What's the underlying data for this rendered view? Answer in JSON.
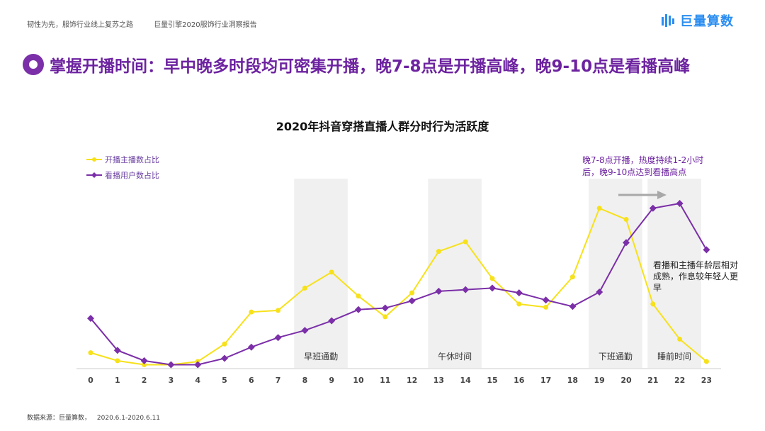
{
  "header": {
    "left_1": "韧性为先，服饰行业线上复苏之路",
    "left_2": "巨量引擎2020服饰行业洞察报告",
    "brand": "巨量算数"
  },
  "title": "掌握开播时间：早中晚多时段均可密集开播，晚7-8点是开播高峰，晚9-10点是看播高峰",
  "annotations": {
    "top": "晚7-8点开播，热度持续1-2小时后，晚9-10点达到看播高点",
    "right": "看播和主播年龄层相对成熟，作息较年轻人更早"
  },
  "footer": {
    "label": "数据来源：巨量算数，",
    "range": "2020.6.1-2020.6.11"
  },
  "colors": {
    "title": "#6d23a0",
    "yellow": "#f7e11a",
    "purple": "#7b2fa8",
    "band": "#f0f0f0",
    "brand": "#2a8df0"
  },
  "chart_data": {
    "type": "line",
    "title": "2020年抖音穿搭直播人群分时行为活跃度",
    "x": [
      0,
      1,
      2,
      3,
      4,
      5,
      6,
      7,
      8,
      9,
      10,
      11,
      12,
      13,
      14,
      15,
      16,
      17,
      18,
      19,
      20,
      21,
      22,
      23
    ],
    "series": [
      {
        "name": "开播主播数占比",
        "color": "#f7e11a",
        "marker": "circle",
        "values": [
          9.5,
          4.5,
          2,
          2,
          4,
          15,
          35,
          36,
          50,
          60,
          45,
          32,
          47,
          73,
          79,
          56,
          40,
          38,
          57,
          100,
          93,
          40,
          18,
          4
        ]
      },
      {
        "name": "看播用户数占比",
        "color": "#7b2fa8",
        "marker": "diamond",
        "values": [
          31,
          11,
          4.5,
          2,
          2,
          6,
          13,
          19,
          23.5,
          29.5,
          36.5,
          37.5,
          42,
          48,
          49,
          50,
          47,
          42.5,
          38.5,
          47.5,
          78.5,
          100,
          103,
          74
        ]
      }
    ],
    "bands": [
      {
        "label": "早班通勤",
        "from": 7.6,
        "to": 9.6
      },
      {
        "label": "午休时间",
        "from": 12.6,
        "to": 14.6
      },
      {
        "label": "下班通勤",
        "from": 18.6,
        "to": 20.6
      },
      {
        "label": "睡前时间",
        "from": 20.8,
        "to": 22.8
      }
    ],
    "ylim": [
      0,
      115
    ]
  }
}
